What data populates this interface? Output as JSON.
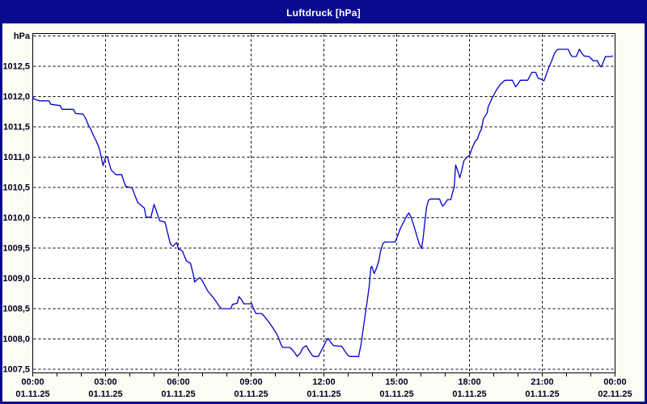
{
  "window": {
    "title": "Luftdruck [hPa]"
  },
  "colors": {
    "frame_navy": "#0a0a8e",
    "title_text": "#ffffff",
    "content_bg": "#fcfcf4",
    "plot_bg": "#ffffff",
    "grid": "#000000",
    "axis_text": "#000020",
    "line": "#0000cd"
  },
  "chart_data": {
    "type": "line",
    "title": "Luftdruck [hPa]",
    "ylabel": "hPa",
    "xlabel": "",
    "grid": "dashed",
    "legend_position": "none",
    "ylim": [
      1007.5,
      1013.0
    ],
    "y_tick_step": 0.5,
    "y_tick_labels_top_to_bottom": [
      "hPa",
      "1012,5",
      "1012,0",
      "1011,5",
      "1011,0",
      "1010,5",
      "1010,0",
      "1009,5",
      "1009,0",
      "1008,5",
      "1008,0",
      "1007,5"
    ],
    "x_hours_range": [
      0,
      24
    ],
    "x_minor_tick_hours": 1,
    "x_ticks": [
      {
        "hour": 0,
        "time": "00:00",
        "date": "01.11.25"
      },
      {
        "hour": 3,
        "time": "03:00",
        "date": "01.11.25"
      },
      {
        "hour": 6,
        "time": "06:00",
        "date": "01.11.25"
      },
      {
        "hour": 9,
        "time": "09:00",
        "date": "01.11.25"
      },
      {
        "hour": 12,
        "time": "12:00",
        "date": "01.11.25"
      },
      {
        "hour": 15,
        "time": "15:00",
        "date": "01.11.25"
      },
      {
        "hour": 18,
        "time": "18:00",
        "date": "01.11.25"
      },
      {
        "hour": 21,
        "time": "21:00",
        "date": "01.11.25"
      },
      {
        "hour": 24,
        "time": "00:00",
        "date": "02.11.25"
      }
    ],
    "series": [
      {
        "name": "Luftdruck",
        "unit": "hPa",
        "points": [
          [
            0.0,
            1012.0
          ],
          [
            0.05,
            1011.96
          ],
          [
            0.27,
            1011.93
          ],
          [
            0.67,
            1011.93
          ],
          [
            0.75,
            1011.87
          ],
          [
            1.13,
            1011.85
          ],
          [
            1.2,
            1011.79
          ],
          [
            1.67,
            1011.79
          ],
          [
            1.77,
            1011.72
          ],
          [
            2.07,
            1011.71
          ],
          [
            2.17,
            1011.65
          ],
          [
            2.27,
            1011.55
          ],
          [
            2.4,
            1011.45
          ],
          [
            2.5,
            1011.36
          ],
          [
            2.6,
            1011.28
          ],
          [
            2.73,
            1011.16
          ],
          [
            2.83,
            1010.99
          ],
          [
            2.9,
            1010.86
          ],
          [
            3.0,
            1011.0
          ],
          [
            3.07,
            1011.01
          ],
          [
            3.23,
            1010.79
          ],
          [
            3.43,
            1010.71
          ],
          [
            3.67,
            1010.71
          ],
          [
            3.73,
            1010.63
          ],
          [
            3.83,
            1010.52
          ],
          [
            4.1,
            1010.49
          ],
          [
            4.2,
            1010.38
          ],
          [
            4.33,
            1010.25
          ],
          [
            4.6,
            1010.16
          ],
          [
            4.67,
            1010.01
          ],
          [
            4.87,
            1010.01
          ],
          [
            5.0,
            1010.22
          ],
          [
            5.23,
            1009.95
          ],
          [
            5.45,
            1009.93
          ],
          [
            5.67,
            1009.57
          ],
          [
            5.78,
            1009.53
          ],
          [
            5.93,
            1009.59
          ],
          [
            6.0,
            1009.49
          ],
          [
            6.17,
            1009.45
          ],
          [
            6.33,
            1009.29
          ],
          [
            6.5,
            1009.25
          ],
          [
            6.57,
            1009.14
          ],
          [
            6.63,
            1009.04
          ],
          [
            6.67,
            1008.94
          ],
          [
            6.83,
            1009.0
          ],
          [
            6.9,
            1009.01
          ],
          [
            7.0,
            1008.95
          ],
          [
            7.23,
            1008.78
          ],
          [
            7.43,
            1008.69
          ],
          [
            7.57,
            1008.61
          ],
          [
            7.67,
            1008.55
          ],
          [
            7.77,
            1008.5
          ],
          [
            8.17,
            1008.5
          ],
          [
            8.23,
            1008.57
          ],
          [
            8.43,
            1008.59
          ],
          [
            8.5,
            1008.7
          ],
          [
            8.6,
            1008.65
          ],
          [
            8.7,
            1008.58
          ],
          [
            9.03,
            1008.58
          ],
          [
            9.1,
            1008.5
          ],
          [
            9.2,
            1008.42
          ],
          [
            9.43,
            1008.42
          ],
          [
            9.53,
            1008.38
          ],
          [
            9.67,
            1008.31
          ],
          [
            9.8,
            1008.24
          ],
          [
            9.9,
            1008.18
          ],
          [
            10.03,
            1008.1
          ],
          [
            10.13,
            1008.02
          ],
          [
            10.23,
            1007.91
          ],
          [
            10.3,
            1007.86
          ],
          [
            10.6,
            1007.86
          ],
          [
            10.7,
            1007.82
          ],
          [
            10.8,
            1007.77
          ],
          [
            10.9,
            1007.71
          ],
          [
            11.03,
            1007.77
          ],
          [
            11.13,
            1007.85
          ],
          [
            11.27,
            1007.89
          ],
          [
            11.37,
            1007.82
          ],
          [
            11.5,
            1007.74
          ],
          [
            11.57,
            1007.71
          ],
          [
            11.77,
            1007.71
          ],
          [
            11.87,
            1007.79
          ],
          [
            12.0,
            1007.89
          ],
          [
            12.1,
            1007.97
          ],
          [
            12.17,
            1008.01
          ],
          [
            12.27,
            1007.95
          ],
          [
            12.4,
            1007.89
          ],
          [
            12.73,
            1007.88
          ],
          [
            12.83,
            1007.82
          ],
          [
            12.97,
            1007.74
          ],
          [
            13.07,
            1007.71
          ],
          [
            13.43,
            1007.71
          ],
          [
            13.53,
            1007.91
          ],
          [
            13.6,
            1008.11
          ],
          [
            13.67,
            1008.31
          ],
          [
            13.73,
            1008.48
          ],
          [
            13.8,
            1008.67
          ],
          [
            13.87,
            1008.88
          ],
          [
            13.93,
            1009.17
          ],
          [
            13.97,
            1009.2
          ],
          [
            14.07,
            1009.08
          ],
          [
            14.17,
            1009.17
          ],
          [
            14.27,
            1009.3
          ],
          [
            14.33,
            1009.44
          ],
          [
            14.43,
            1009.57
          ],
          [
            14.5,
            1009.6
          ],
          [
            14.93,
            1009.6
          ],
          [
            15.0,
            1009.66
          ],
          [
            15.1,
            1009.77
          ],
          [
            15.17,
            1009.84
          ],
          [
            15.3,
            1009.94
          ],
          [
            15.4,
            1010.02
          ],
          [
            15.5,
            1010.08
          ],
          [
            15.6,
            1010.0
          ],
          [
            15.73,
            1009.84
          ],
          [
            15.83,
            1009.7
          ],
          [
            15.93,
            1009.57
          ],
          [
            16.03,
            1009.49
          ],
          [
            16.1,
            1009.7
          ],
          [
            16.17,
            1009.97
          ],
          [
            16.23,
            1010.17
          ],
          [
            16.3,
            1010.28
          ],
          [
            16.37,
            1010.31
          ],
          [
            16.77,
            1010.31
          ],
          [
            16.83,
            1010.24
          ],
          [
            16.9,
            1010.19
          ],
          [
            17.0,
            1010.24
          ],
          [
            17.1,
            1010.3
          ],
          [
            17.23,
            1010.3
          ],
          [
            17.3,
            1010.41
          ],
          [
            17.37,
            1010.51
          ],
          [
            17.43,
            1010.87
          ],
          [
            17.53,
            1010.76
          ],
          [
            17.6,
            1010.66
          ],
          [
            17.67,
            1010.76
          ],
          [
            17.77,
            1010.94
          ],
          [
            17.87,
            1010.99
          ],
          [
            18.0,
            1011.03
          ],
          [
            18.1,
            1011.14
          ],
          [
            18.23,
            1011.26
          ],
          [
            18.33,
            1011.3
          ],
          [
            18.4,
            1011.39
          ],
          [
            18.5,
            1011.47
          ],
          [
            18.57,
            1011.63
          ],
          [
            18.73,
            1011.73
          ],
          [
            18.77,
            1011.83
          ],
          [
            18.93,
            1011.97
          ],
          [
            19.1,
            1012.1
          ],
          [
            19.27,
            1012.2
          ],
          [
            19.43,
            1012.26
          ],
          [
            19.5,
            1012.27
          ],
          [
            19.77,
            1012.27
          ],
          [
            19.9,
            1012.16
          ],
          [
            20.0,
            1012.21
          ],
          [
            20.1,
            1012.27
          ],
          [
            20.4,
            1012.27
          ],
          [
            20.57,
            1012.4
          ],
          [
            20.73,
            1012.4
          ],
          [
            20.83,
            1012.3
          ],
          [
            20.93,
            1012.29
          ],
          [
            21.07,
            1012.26
          ],
          [
            21.17,
            1012.37
          ],
          [
            21.27,
            1012.48
          ],
          [
            21.4,
            1012.6
          ],
          [
            21.5,
            1012.71
          ],
          [
            21.6,
            1012.77
          ],
          [
            21.67,
            1012.78
          ],
          [
            22.07,
            1012.78
          ],
          [
            22.17,
            1012.69
          ],
          [
            22.23,
            1012.66
          ],
          [
            22.4,
            1012.66
          ],
          [
            22.53,
            1012.78
          ],
          [
            22.63,
            1012.71
          ],
          [
            22.73,
            1012.67
          ],
          [
            22.93,
            1012.66
          ],
          [
            23.03,
            1012.62
          ],
          [
            23.1,
            1012.59
          ],
          [
            23.27,
            1012.59
          ],
          [
            23.37,
            1012.51
          ],
          [
            23.43,
            1012.49
          ],
          [
            23.53,
            1012.58
          ],
          [
            23.6,
            1012.66
          ],
          [
            23.83,
            1012.66
          ],
          [
            23.9,
            1012.67
          ]
        ]
      }
    ]
  }
}
